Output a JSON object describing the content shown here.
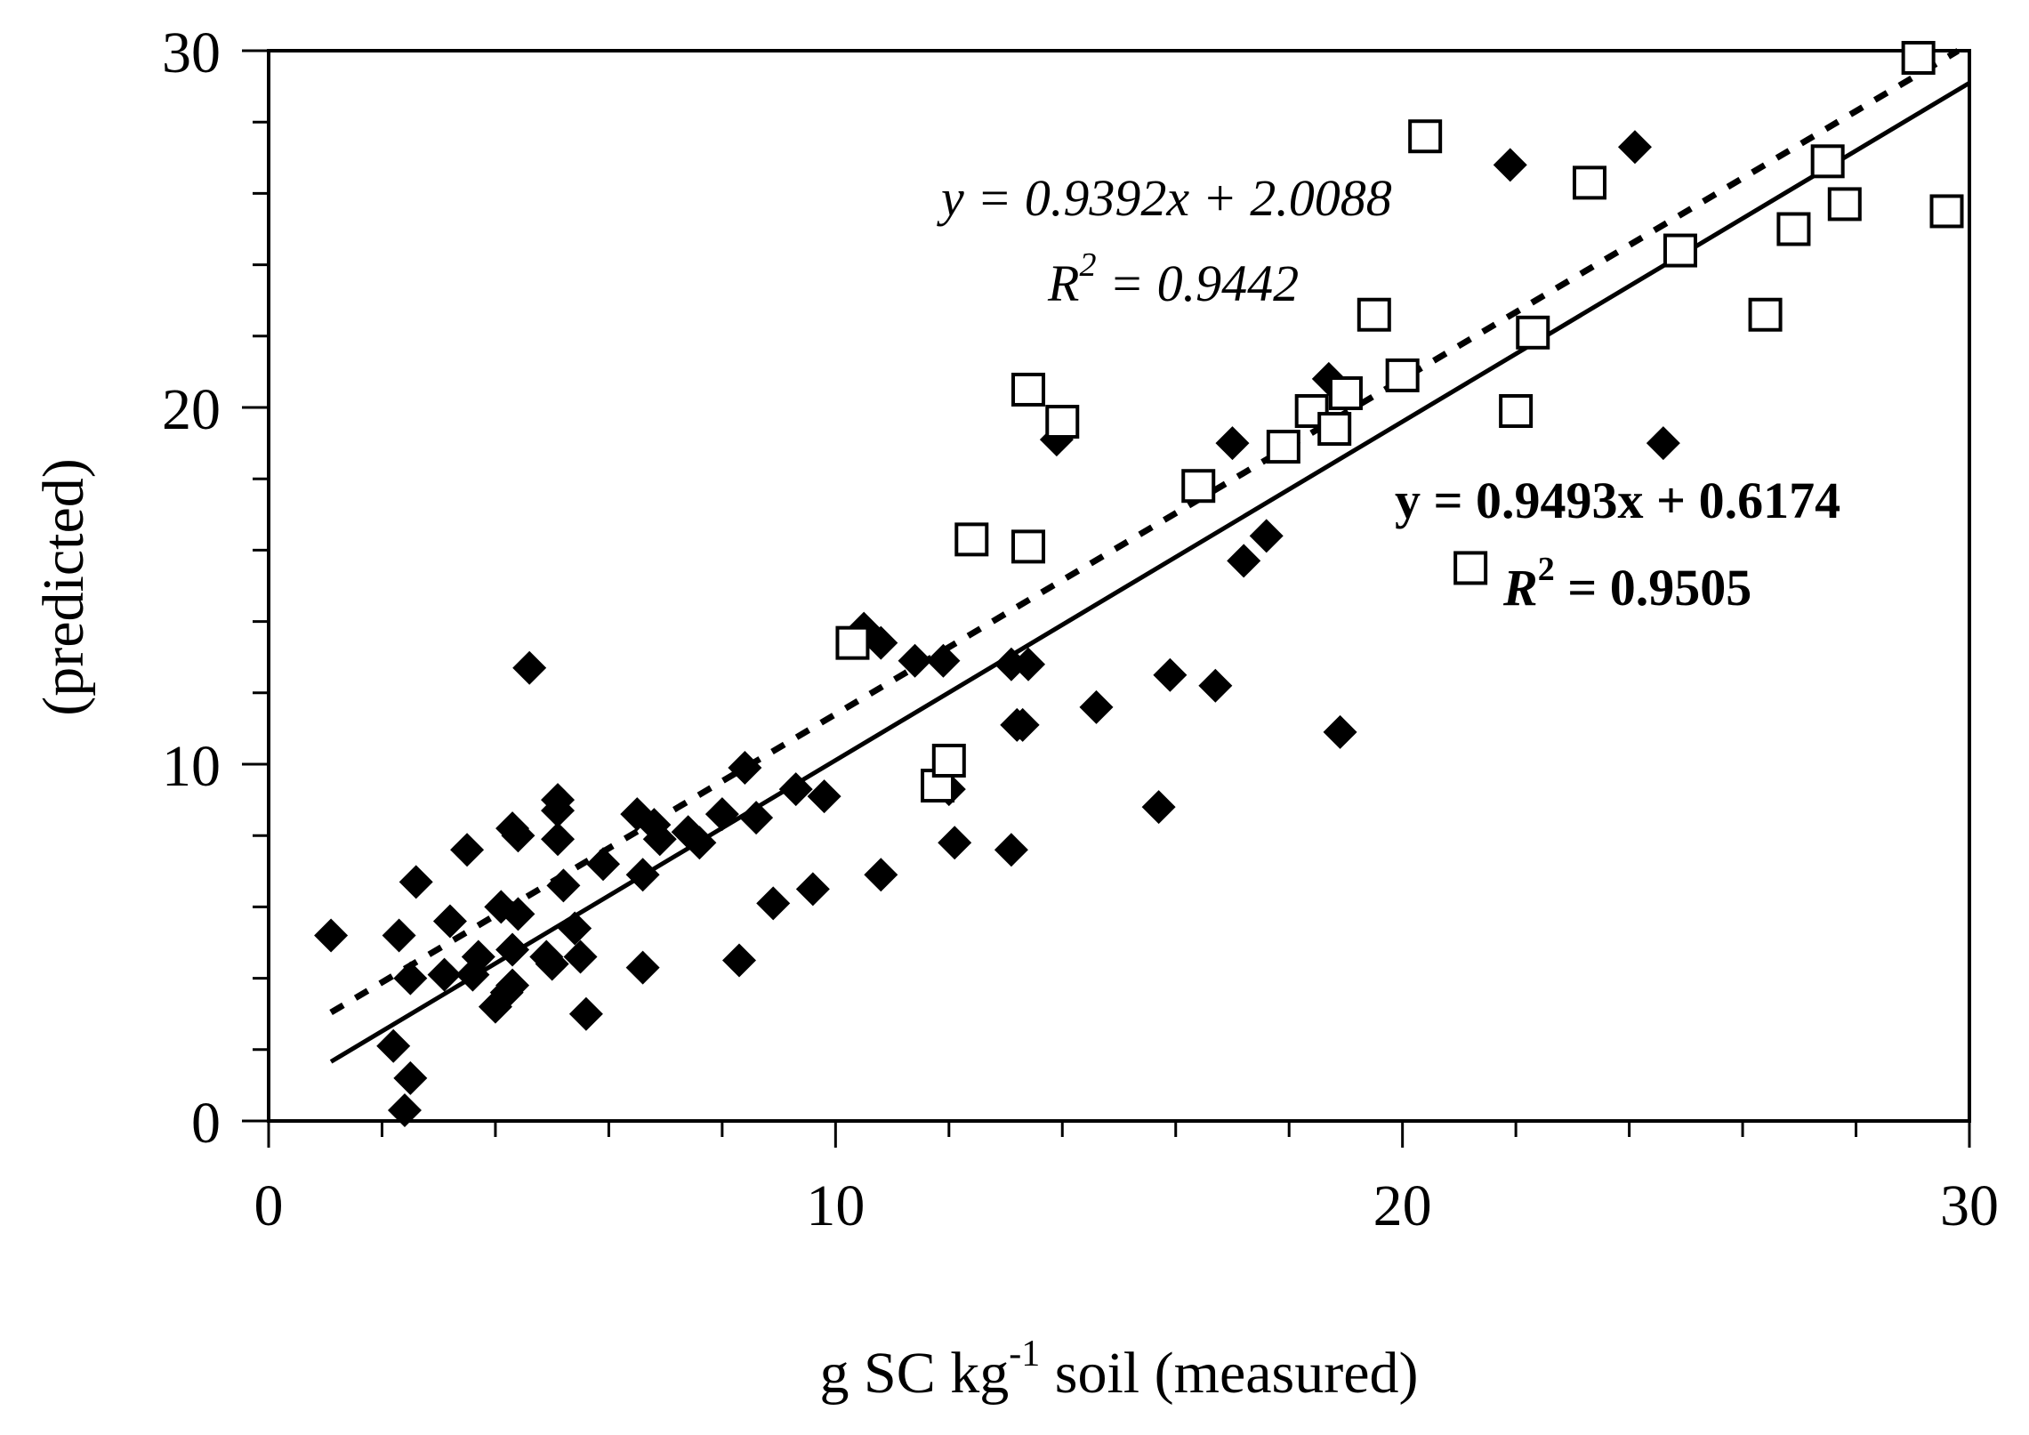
{
  "chart_data": {
    "type": "scatter",
    "title": "",
    "xlabel": "g SC kg-1 soil (measured)",
    "xlabel_parts": {
      "pre": "g SC kg",
      "sup": "-1",
      "post": " soil (measured)"
    },
    "ylabel": "(predicted)",
    "xlim": [
      0,
      30
    ],
    "ylim": [
      0,
      30
    ],
    "x_ticks": [
      0,
      10,
      20,
      30
    ],
    "y_ticks": [
      0,
      10,
      20,
      30
    ],
    "x_tick_labels": [
      "0",
      "10",
      "20",
      "30"
    ],
    "y_tick_labels": [
      "0",
      "10",
      "20",
      "30"
    ],
    "grid": false,
    "series": [
      {
        "name": "filled diamonds",
        "marker": "diamond-filled",
        "points": [
          [
            1.1,
            5.2
          ],
          [
            2.2,
            2.1
          ],
          [
            2.4,
            0.3
          ],
          [
            2.5,
            1.2
          ],
          [
            2.5,
            4.0
          ],
          [
            2.3,
            5.2
          ],
          [
            2.6,
            6.7
          ],
          [
            3.1,
            4.1
          ],
          [
            3.2,
            5.6
          ],
          [
            3.5,
            7.6
          ],
          [
            3.6,
            4.1
          ],
          [
            3.7,
            4.6
          ],
          [
            4.0,
            3.2
          ],
          [
            4.1,
            6.0
          ],
          [
            4.2,
            3.6
          ],
          [
            4.3,
            3.8
          ],
          [
            4.3,
            4.8
          ],
          [
            4.3,
            8.2
          ],
          [
            4.4,
            8.0
          ],
          [
            4.4,
            5.8
          ],
          [
            4.6,
            12.7
          ],
          [
            4.9,
            4.6
          ],
          [
            5.0,
            4.4
          ],
          [
            5.1,
            7.9
          ],
          [
            5.1,
            8.7
          ],
          [
            5.1,
            9.0
          ],
          [
            5.2,
            6.6
          ],
          [
            5.4,
            5.4
          ],
          [
            5.5,
            4.6
          ],
          [
            5.6,
            3.0
          ],
          [
            5.9,
            7.2
          ],
          [
            6.5,
            8.6
          ],
          [
            6.6,
            4.3
          ],
          [
            6.6,
            6.9
          ],
          [
            6.8,
            8.3
          ],
          [
            6.9,
            7.9
          ],
          [
            7.4,
            8.1
          ],
          [
            7.6,
            7.8
          ],
          [
            8.0,
            8.6
          ],
          [
            8.3,
            4.5
          ],
          [
            8.4,
            9.9
          ],
          [
            8.6,
            8.5
          ],
          [
            8.9,
            6.1
          ],
          [
            9.3,
            9.3
          ],
          [
            9.6,
            6.5
          ],
          [
            9.8,
            9.1
          ],
          [
            10.5,
            13.8
          ],
          [
            10.8,
            13.4
          ],
          [
            10.8,
            6.9
          ],
          [
            11.4,
            12.9
          ],
          [
            11.9,
            12.9
          ],
          [
            12.0,
            9.3
          ],
          [
            12.1,
            7.8
          ],
          [
            13.1,
            12.8
          ],
          [
            13.2,
            11.1
          ],
          [
            13.1,
            7.6
          ],
          [
            13.3,
            11.1
          ],
          [
            13.4,
            12.8
          ],
          [
            13.9,
            19.1
          ],
          [
            14.6,
            11.6
          ],
          [
            15.7,
            8.8
          ],
          [
            15.9,
            12.5
          ],
          [
            16.7,
            12.2
          ],
          [
            17.0,
            19.0
          ],
          [
            17.2,
            15.7
          ],
          [
            17.6,
            16.4
          ],
          [
            18.7,
            20.8
          ],
          [
            18.9,
            10.9
          ],
          [
            21.9,
            26.8
          ],
          [
            24.1,
            27.3
          ],
          [
            24.6,
            19.0
          ]
        ]
      },
      {
        "name": "open squares",
        "marker": "square-open",
        "points": [
          [
            10.3,
            13.4
          ],
          [
            11.8,
            9.4
          ],
          [
            12.0,
            10.1
          ],
          [
            12.4,
            16.3
          ],
          [
            13.4,
            16.1
          ],
          [
            13.4,
            20.5
          ],
          [
            14.0,
            19.6
          ],
          [
            16.4,
            17.8
          ],
          [
            17.9,
            18.9
          ],
          [
            18.4,
            19.9
          ],
          [
            18.8,
            19.4
          ],
          [
            19.0,
            20.4
          ],
          [
            19.5,
            22.6
          ],
          [
            20.0,
            20.9
          ],
          [
            20.4,
            27.6
          ],
          [
            21.2,
            15.5
          ],
          [
            22.0,
            19.9
          ],
          [
            22.3,
            22.1
          ],
          [
            23.3,
            26.3
          ],
          [
            24.9,
            24.4
          ],
          [
            26.4,
            22.6
          ],
          [
            26.9,
            25.0
          ],
          [
            27.5,
            26.9
          ],
          [
            27.8,
            25.7
          ],
          [
            29.1,
            29.8
          ],
          [
            29.6,
            25.5
          ]
        ]
      }
    ],
    "regression_lines": [
      {
        "name": "solid fit",
        "style": "solid",
        "slope": 0.9493,
        "intercept": 0.6174,
        "x_range": [
          1.1,
          30
        ]
      },
      {
        "name": "dashed fit",
        "style": "dashed",
        "slope": 0.9392,
        "intercept": 2.0088,
        "x_range": [
          1.1,
          29.8
        ]
      }
    ],
    "annotations": {
      "dashed_equation": "y = 0.9392x + 2.0088",
      "dashed_r2_label": "R",
      "dashed_r2_sup": "2",
      "dashed_r2_value": " = 0.9442",
      "solid_equation": "y = 0.9493x + 0.6174",
      "solid_r2_label": "R",
      "solid_r2_sup": "2",
      "solid_r2_value": " = 0.9505"
    }
  }
}
